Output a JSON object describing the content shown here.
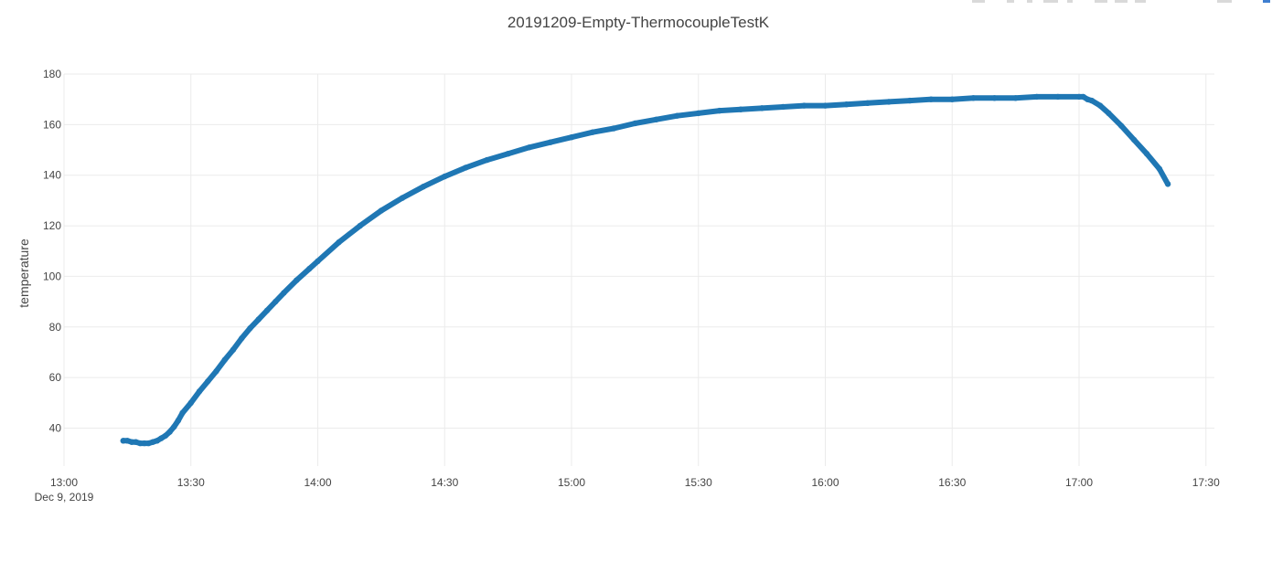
{
  "chart_data": {
    "type": "scatter",
    "title": "20191209-Empty-ThermocoupleTestK",
    "xlabel": "",
    "ylabel": "temperature",
    "x_tick_labels": [
      "13:00",
      "13:30",
      "14:00",
      "14:30",
      "15:00",
      "15:30",
      "16:00",
      "16:30",
      "17:00",
      "17:30"
    ],
    "x_date_label": "Dec 9, 2019",
    "xlim": [
      "13:00",
      "17:32"
    ],
    "y_ticks": [
      40,
      60,
      80,
      100,
      120,
      140,
      160,
      180
    ],
    "ylim": [
      25,
      180
    ],
    "grid": true,
    "series_color": "#1f77b4",
    "series": [
      {
        "x": [
          "13:14",
          "13:15",
          "13:16",
          "13:17",
          "13:18",
          "13:19",
          "13:20",
          "13:21",
          "13:22",
          "13:23",
          "13:24",
          "13:25",
          "13:26",
          "13:27",
          "13:28",
          "13:30",
          "13:32",
          "13:34",
          "13:36",
          "13:38",
          "13:40",
          "13:42",
          "13:44",
          "13:46",
          "13:48",
          "13:50",
          "13:52",
          "13:55",
          "13:58",
          "14:00",
          "14:05",
          "14:10",
          "14:15",
          "14:20",
          "14:25",
          "14:30",
          "14:35",
          "14:40",
          "14:45",
          "14:50",
          "14:55",
          "15:00",
          "15:05",
          "15:10",
          "15:15",
          "15:20",
          "15:25",
          "15:30",
          "15:35",
          "15:40",
          "15:45",
          "15:50",
          "15:55",
          "16:00",
          "16:05",
          "16:10",
          "16:15",
          "16:20",
          "16:25",
          "16:30",
          "16:35",
          "16:40",
          "16:45",
          "16:50",
          "16:55",
          "17:00",
          "17:01",
          "17:02",
          "17:03",
          "17:05",
          "17:07",
          "17:10",
          "17:13",
          "17:16",
          "17:19",
          "17:21"
        ],
        "y": [
          35,
          35,
          34.5,
          34.5,
          34,
          34,
          34,
          34.5,
          35,
          36,
          37,
          38.5,
          40.5,
          43,
          46,
          50,
          54.5,
          58.5,
          62.5,
          67,
          71,
          75.5,
          79.5,
          83,
          86.5,
          90,
          93.5,
          98.5,
          103,
          106,
          113.5,
          120,
          126,
          131,
          135.5,
          139.5,
          143,
          146,
          148.5,
          151,
          153,
          155,
          157,
          158.5,
          160.5,
          162,
          163.5,
          164.5,
          165.5,
          166,
          166.5,
          167,
          167.5,
          167.5,
          168,
          168.5,
          169,
          169.5,
          170,
          170,
          170.5,
          170.5,
          170.5,
          171,
          171,
          171,
          171,
          170,
          169.5,
          167.5,
          164.5,
          159.5,
          154,
          148.5,
          142.5,
          136.5
        ]
      }
    ]
  }
}
